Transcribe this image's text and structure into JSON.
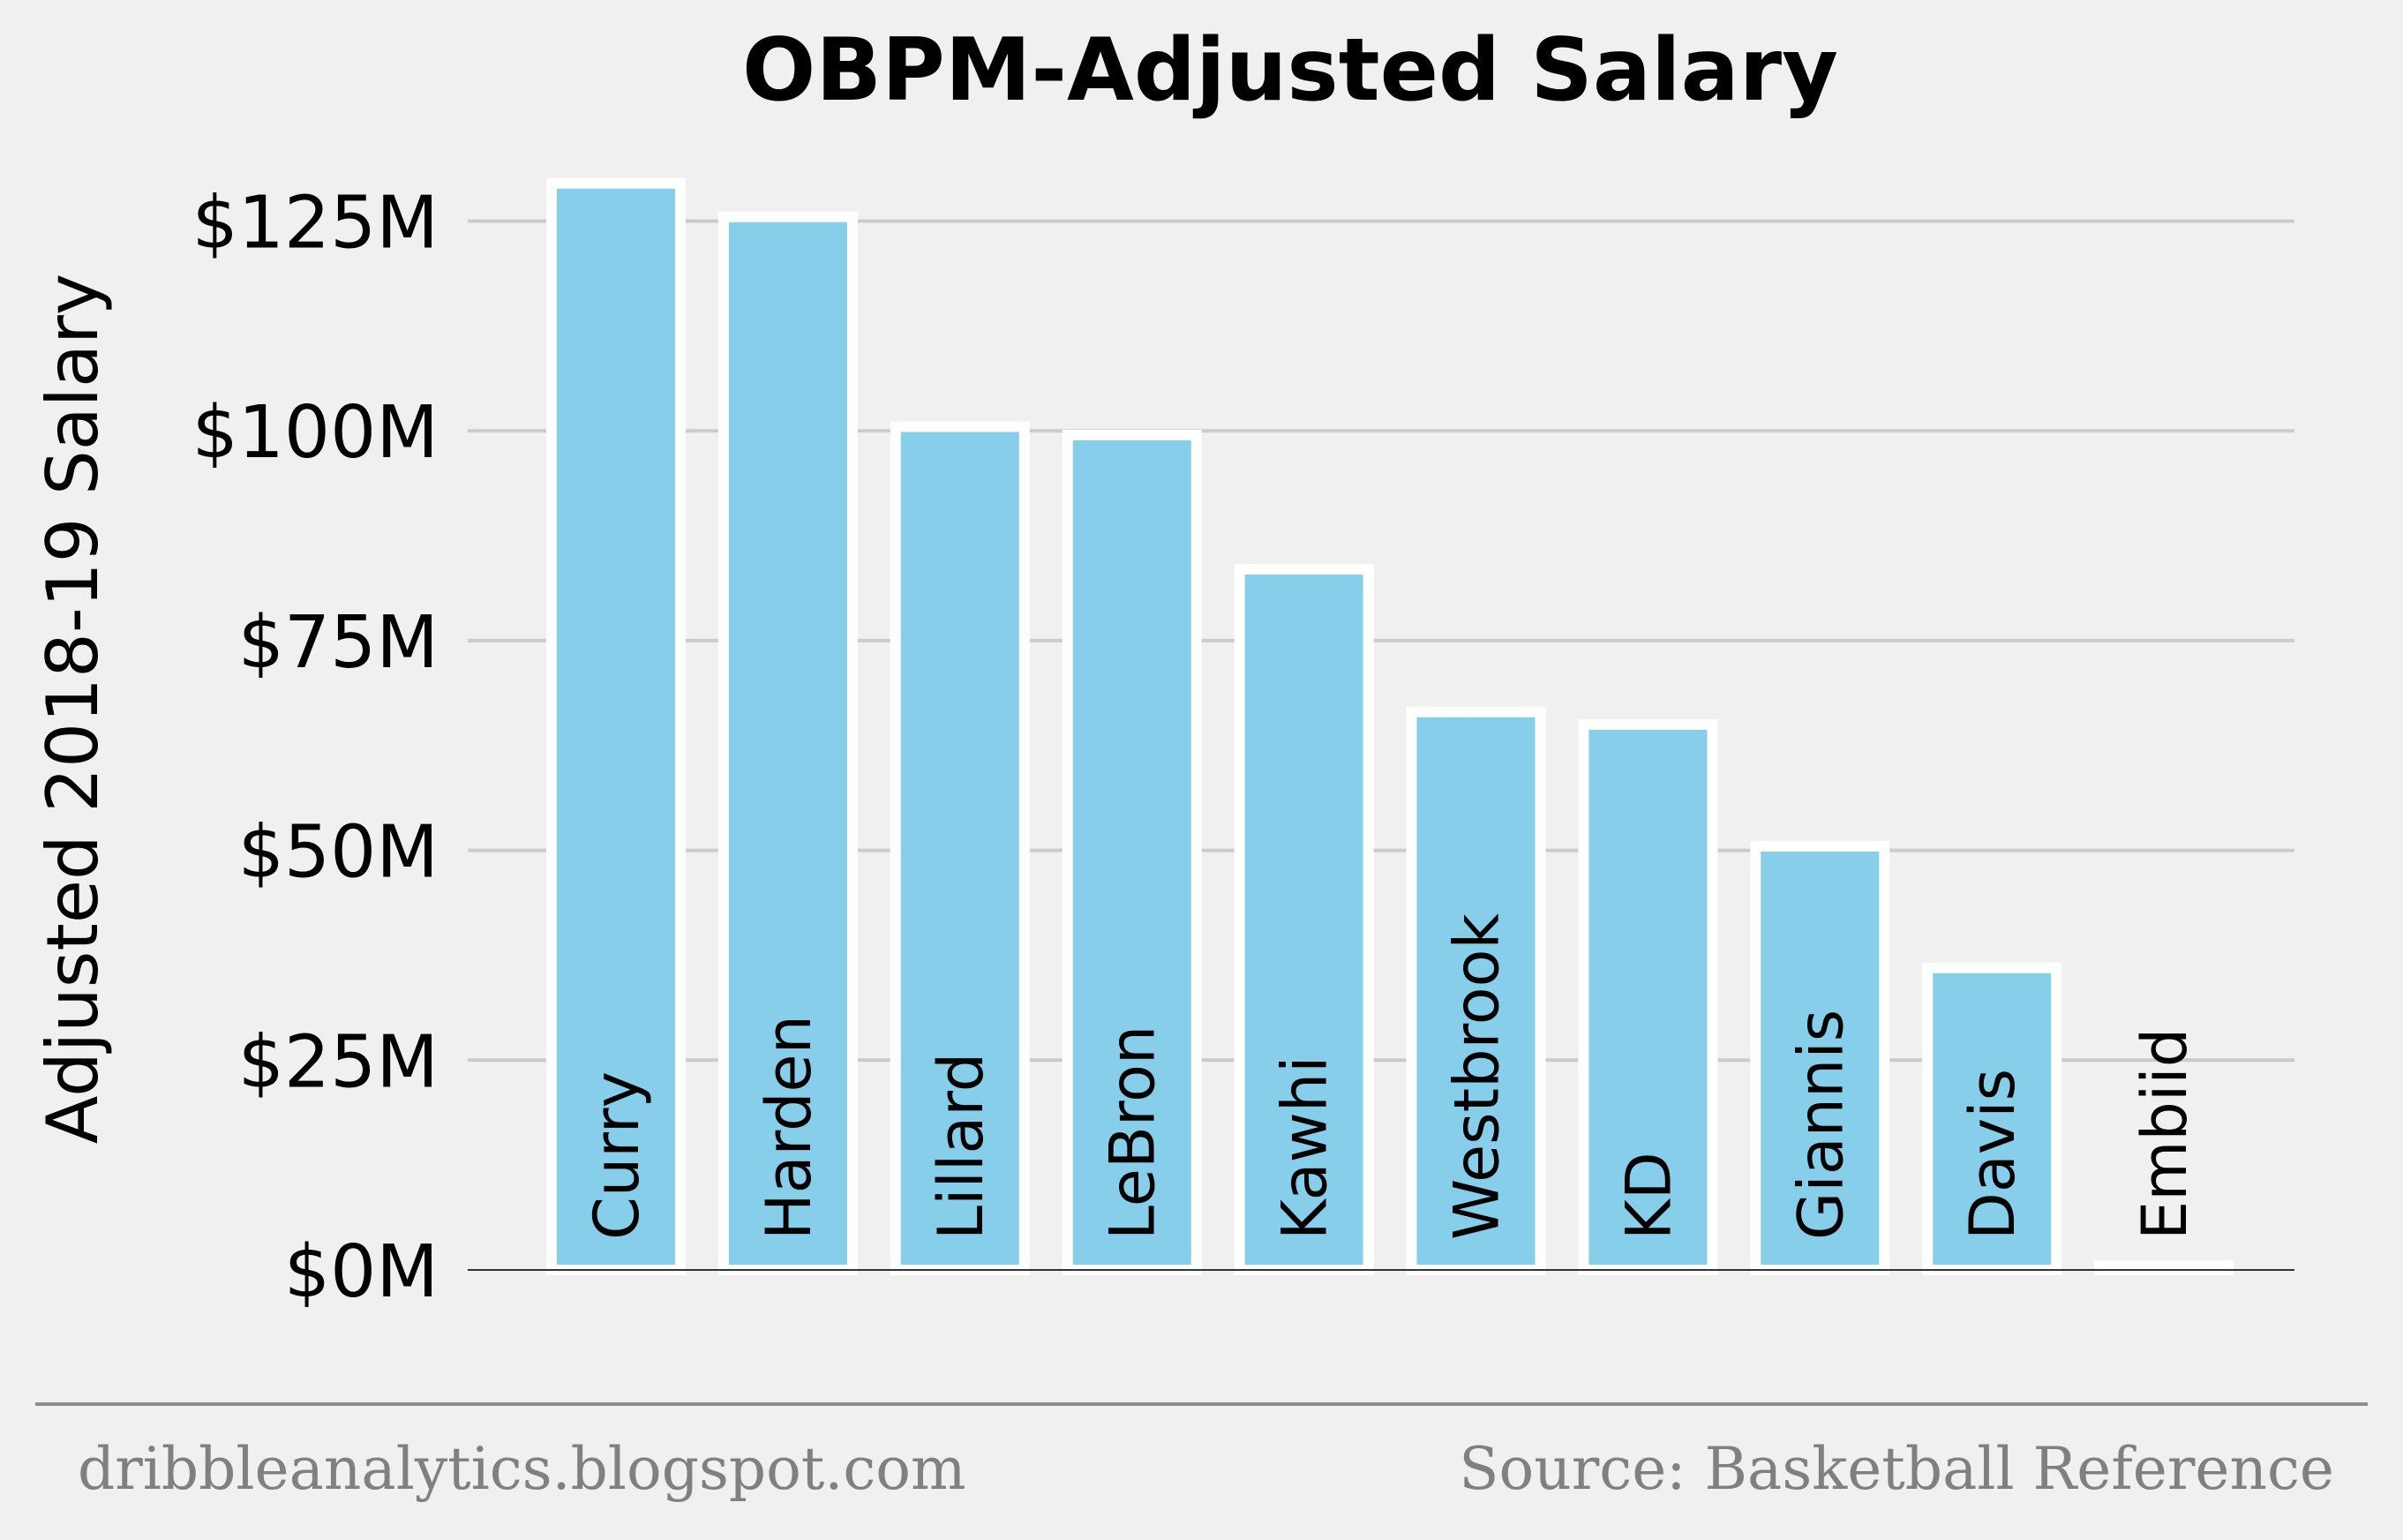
{
  "chart_data": {
    "type": "bar",
    "title": "OBPM-Adjusted Salary",
    "xlabel": "",
    "ylabel": "Adjusted 2018-19 Salary",
    "categories": [
      "Curry",
      "Harden",
      "Lillard",
      "LeBron",
      "Kawhi",
      "Westbrook",
      "KD",
      "Giannis",
      "Davis",
      "Embiid"
    ],
    "values": [
      129.5,
      125.5,
      100.5,
      99.5,
      83.5,
      66.5,
      65.0,
      50.5,
      36.0,
      0.5
    ],
    "yticks": [
      0,
      25,
      50,
      75,
      100,
      125
    ],
    "ytick_labels": [
      "$0M",
      "$25M",
      "$50M",
      "$75M",
      "$100M",
      "$125M"
    ],
    "ylim": [
      0,
      133
    ],
    "grid": "horizontal",
    "legend": "none",
    "label_position": "inside-bottom-vertical",
    "colors": {
      "bar_fill": "#87ceeb",
      "bar_edge": "#ffffff",
      "background": "#f0f0f0",
      "grid": "#cbcbcb",
      "footer_text": "#808080",
      "footer_rule": "#8c8c8c"
    }
  },
  "footer": {
    "left": "dribbleanalytics.blogspot.com",
    "right": "Source: Basketball Reference"
  }
}
